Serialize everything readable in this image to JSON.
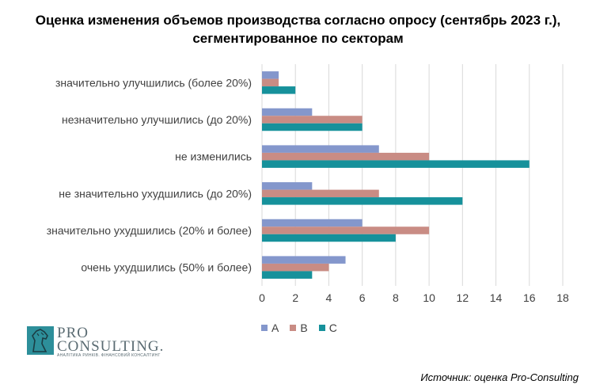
{
  "chart_data": {
    "type": "bar",
    "orientation": "horizontal",
    "title": "Оценка изменения объемов производства согласно опросу (сентябрь 2023 г.), сегментированное по секторам",
    "categories": [
      "значительно улучшились (более 20%)",
      "незначительно улучшились (до 20%)",
      "не изменились",
      "не значительно ухудшились (до 20%)",
      "значительно ухудшились (20% и более)",
      "очень ухудшились (50% и более)"
    ],
    "series": [
      {
        "name": "A",
        "color": "#8497cc",
        "values": [
          1,
          3,
          7,
          3,
          6,
          5
        ]
      },
      {
        "name": "B",
        "color": "#c98c84",
        "values": [
          1,
          6,
          10,
          7,
          10,
          4
        ]
      },
      {
        "name": "C",
        "color": "#16919b",
        "values": [
          2,
          6,
          16,
          12,
          8,
          3
        ]
      }
    ],
    "xlim": [
      0,
      18
    ],
    "xticks": [
      0,
      2,
      4,
      6,
      8,
      10,
      12,
      14,
      16,
      18
    ],
    "grid": true,
    "legend_position": "bottom"
  },
  "logo": {
    "line1": "PRO",
    "line2": "CONSULTING.",
    "tagline": "АНАЛІТИКА РИНКІВ. ФІНАНСОВИЙ КОНСАЛТИНГ",
    "icon": "horse-head-icon"
  },
  "source": "Источник: оценка Pro-Consulting"
}
